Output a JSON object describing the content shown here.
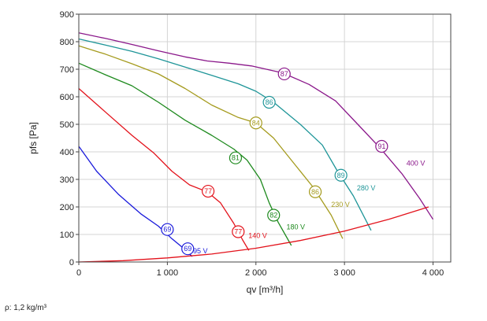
{
  "chart_data": {
    "type": "line",
    "xlabel": "qv [m³/h]",
    "ylabel": "pfs [Pa]",
    "xlim": [
      0,
      4200
    ],
    "ylim": [
      0,
      900
    ],
    "x_ticks": [
      0,
      1000,
      2000,
      3000,
      4000
    ],
    "x_tick_labels": [
      "0",
      "1 000",
      "2 000",
      "3 000",
      "4 000"
    ],
    "y_ticks": [
      0,
      100,
      200,
      300,
      400,
      500,
      600,
      700,
      800,
      900
    ],
    "y_tick_labels": [
      "0",
      "100",
      "200",
      "300",
      "400",
      "500",
      "600",
      "700",
      "800",
      "900"
    ],
    "grid": true,
    "series": [
      {
        "name": "95 V",
        "color": "#1a1adb",
        "points": [
          [
            0,
            420
          ],
          [
            200,
            330
          ],
          [
            450,
            245
          ],
          [
            700,
            175
          ],
          [
            900,
            130
          ],
          [
            1050,
            85
          ],
          [
            1200,
            45
          ],
          [
            1280,
            20
          ]
        ],
        "markers": [
          {
            "label": "69",
            "x": 1000,
            "y": 118
          },
          {
            "label": "69",
            "x": 1230,
            "y": 48
          }
        ]
      },
      {
        "name": "140 V",
        "color": "#e3121b",
        "points": [
          [
            0,
            630
          ],
          [
            300,
            545
          ],
          [
            600,
            460
          ],
          [
            850,
            395
          ],
          [
            1050,
            330
          ],
          [
            1250,
            280
          ],
          [
            1450,
            255
          ],
          [
            1600,
            215
          ],
          [
            1750,
            140
          ],
          [
            1850,
            80
          ],
          [
            1920,
            42
          ]
        ],
        "markers": [
          {
            "label": "77",
            "x": 1460,
            "y": 257
          },
          {
            "label": "77",
            "x": 1800,
            "y": 110
          }
        ]
      },
      {
        "name": "180 V",
        "color": "#1e8a1e",
        "points": [
          [
            0,
            722
          ],
          [
            300,
            680
          ],
          [
            600,
            640
          ],
          [
            900,
            580
          ],
          [
            1200,
            515
          ],
          [
            1500,
            460
          ],
          [
            1750,
            410
          ],
          [
            1900,
            370
          ],
          [
            2050,
            300
          ],
          [
            2150,
            215
          ],
          [
            2250,
            145
          ],
          [
            2400,
            60
          ]
        ],
        "markers": [
          {
            "label": "81",
            "x": 1770,
            "y": 378
          },
          {
            "label": "82",
            "x": 2200,
            "y": 170
          }
        ]
      },
      {
        "name": "230 V",
        "color": "#a59b1e",
        "points": [
          [
            0,
            785
          ],
          [
            300,
            755
          ],
          [
            600,
            720
          ],
          [
            900,
            683
          ],
          [
            1200,
            630
          ],
          [
            1500,
            570
          ],
          [
            1800,
            525
          ],
          [
            2000,
            505
          ],
          [
            2200,
            450
          ],
          [
            2450,
            350
          ],
          [
            2650,
            270
          ],
          [
            2850,
            170
          ],
          [
            2980,
            85
          ]
        ],
        "markers": [
          {
            "label": "84",
            "x": 2000,
            "y": 505
          },
          {
            "label": "86",
            "x": 2670,
            "y": 255
          }
        ]
      },
      {
        "name": "280 V",
        "color": "#1e9598",
        "points": [
          [
            0,
            810
          ],
          [
            300,
            788
          ],
          [
            600,
            765
          ],
          [
            900,
            738
          ],
          [
            1200,
            708
          ],
          [
            1500,
            678
          ],
          [
            1800,
            647
          ],
          [
            2000,
            620
          ],
          [
            2200,
            580
          ],
          [
            2500,
            500
          ],
          [
            2750,
            425
          ],
          [
            2920,
            330
          ],
          [
            3100,
            240
          ],
          [
            3300,
            115
          ]
        ],
        "markers": [
          {
            "label": "86",
            "x": 2150,
            "y": 580
          },
          {
            "label": "89",
            "x": 2960,
            "y": 315
          }
        ]
      },
      {
        "name": "400 V",
        "color": "#8a178a",
        "points": [
          [
            0,
            832
          ],
          [
            300,
            812
          ],
          [
            600,
            790
          ],
          [
            900,
            767
          ],
          [
            1200,
            745
          ],
          [
            1450,
            730
          ],
          [
            1700,
            722
          ],
          [
            1950,
            712
          ],
          [
            2300,
            687
          ],
          [
            2600,
            645
          ],
          [
            2900,
            585
          ],
          [
            3150,
            500
          ],
          [
            3400,
            415
          ],
          [
            3650,
            320
          ],
          [
            3850,
            230
          ],
          [
            4000,
            155
          ]
        ],
        "markers": [
          {
            "label": "87",
            "x": 2320,
            "y": 683
          },
          {
            "label": "91",
            "x": 3420,
            "y": 420
          }
        ]
      },
      {
        "name": "",
        "color": "#e3121b",
        "points": [
          [
            0,
            0
          ],
          [
            500,
            5
          ],
          [
            1000,
            15
          ],
          [
            1500,
            29
          ],
          [
            2000,
            50
          ],
          [
            2500,
            78
          ],
          [
            3000,
            112
          ],
          [
            3500,
            155
          ],
          [
            3950,
            200
          ]
        ],
        "markers": []
      }
    ],
    "series_label_positions": [
      {
        "name": "95 V",
        "x": 1290,
        "y": 32
      },
      {
        "name": "140 V",
        "x": 1915,
        "y": 87
      },
      {
        "name": "180 V",
        "x": 2345,
        "y": 118
      },
      {
        "name": "230 V",
        "x": 2850,
        "y": 200
      },
      {
        "name": "280 V",
        "x": 3140,
        "y": 260
      },
      {
        "name": "400 V",
        "x": 3700,
        "y": 350
      }
    ]
  },
  "footnote": "ρ: 1,2 kg/m³"
}
